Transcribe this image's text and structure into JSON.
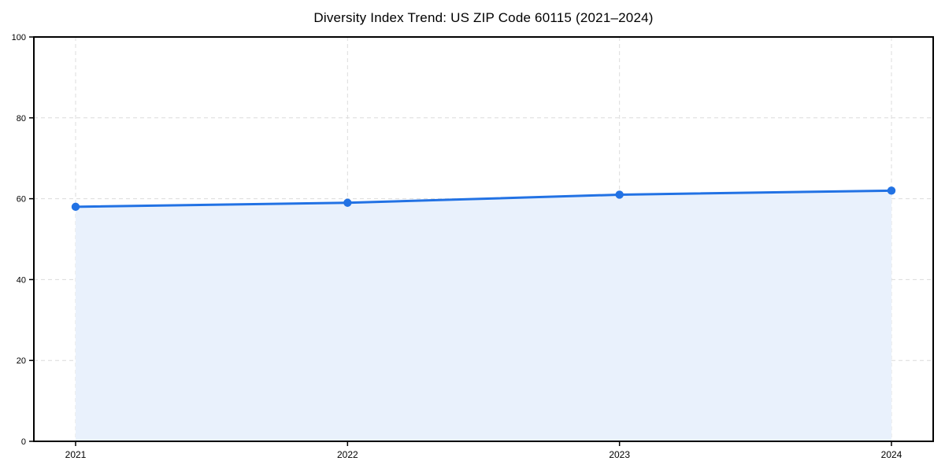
{
  "figure": {
    "background": "#ffffff"
  },
  "chart_data": {
    "type": "area",
    "title": "Diversity Index Trend: US ZIP Code 60115 (2021–2024)",
    "x": [
      2021,
      2022,
      2023,
      2024
    ],
    "xticks": [
      "2021",
      "2022",
      "2023",
      "2024"
    ],
    "series": [
      {
        "name": "Diversity Index",
        "values": [
          58,
          59,
          61,
          62
        ]
      }
    ],
    "xlabel": "",
    "ylabel": "",
    "ylim": [
      0,
      100
    ],
    "yticks": [
      0,
      20,
      40,
      60,
      80,
      100
    ],
    "grid": "on",
    "grid_style": "dashed",
    "legend_position": "none",
    "colors": {
      "line": "#2272e4",
      "marker": "#2272e4",
      "area_fill": "#e9f1fc",
      "grid": "#dcdcdc",
      "axis": "#000000",
      "tick_text": "#000000",
      "background": "#ffffff"
    }
  }
}
